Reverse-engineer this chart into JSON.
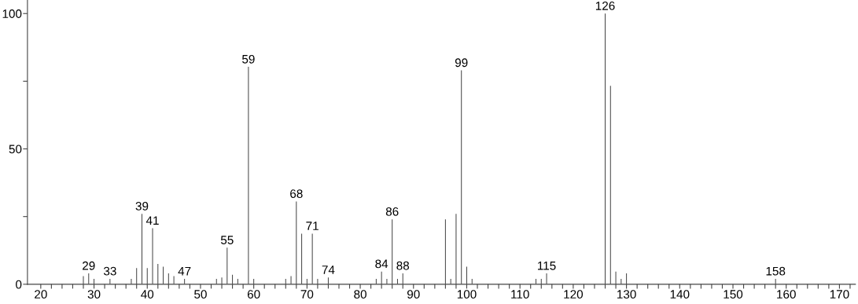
{
  "chart_data": {
    "type": "bar",
    "color": "#444444",
    "x": [
      28,
      29,
      30,
      33,
      37,
      38,
      39,
      40,
      41,
      42,
      43,
      44,
      45,
      47,
      53,
      54,
      55,
      56,
      57,
      59,
      60,
      66,
      67,
      68,
      69,
      70,
      71,
      72,
      74,
      83,
      84,
      85,
      86,
      87,
      88,
      96,
      97,
      98,
      99,
      100,
      101,
      113,
      114,
      115,
      126,
      127,
      128,
      129,
      130,
      158
    ],
    "values": [
      3,
      4,
      2,
      2,
      2,
      6,
      26,
      6,
      20.7,
      7.5,
      6.5,
      4,
      3,
      2,
      2,
      2.5,
      13.5,
      3.5,
      2,
      80.3,
      2,
      2,
      3,
      30.6,
      18.7,
      2,
      18.7,
      2,
      2.5,
      2,
      4.7,
      2,
      24,
      2,
      4,
      24,
      2,
      26,
      79,
      6.5,
      2,
      2,
      2,
      4,
      100,
      73.3,
      4.7,
      2,
      4,
      2
    ],
    "annotations": [
      {
        "text": "29",
        "x": 29,
        "y": 4
      },
      {
        "text": "33",
        "x": 33,
        "y": 2
      },
      {
        "text": "39",
        "x": 39,
        "y": 26
      },
      {
        "text": "41",
        "x": 41,
        "y": 20.7
      },
      {
        "text": "47",
        "x": 47,
        "y": 2
      },
      {
        "text": "55",
        "x": 55,
        "y": 13.5
      },
      {
        "text": "59",
        "x": 59,
        "y": 80.3
      },
      {
        "text": "68",
        "x": 68,
        "y": 30.6
      },
      {
        "text": "71",
        "x": 71,
        "y": 18.7
      },
      {
        "text": "74",
        "x": 74,
        "y": 2.5
      },
      {
        "text": "84",
        "x": 84,
        "y": 4.7
      },
      {
        "text": "86",
        "x": 86,
        "y": 24
      },
      {
        "text": "88",
        "x": 88,
        "y": 4
      },
      {
        "text": "99",
        "x": 99,
        "y": 79
      },
      {
        "text": "115",
        "x": 115,
        "y": 4
      },
      {
        "text": "126",
        "x": 126,
        "y": 100
      },
      {
        "text": "158",
        "x": 158,
        "y": 2
      }
    ],
    "xlim": [
      17.5,
      173
    ],
    "xticks": [
      20,
      {
        "value": 22,
        "label": null
      },
      {
        "value": 24,
        "label": null
      },
      {
        "value": 26,
        "label": null
      },
      {
        "value": 28,
        "label": null
      },
      30,
      {
        "value": 32,
        "label": null
      },
      {
        "value": 34,
        "label": null
      },
      {
        "value": 36,
        "label": null
      },
      {
        "value": 38,
        "label": null
      },
      40,
      {
        "value": 42,
        "label": null
      },
      {
        "value": 44,
        "label": null
      },
      {
        "value": 46,
        "label": null
      },
      {
        "value": 48,
        "label": null
      },
      50,
      {
        "value": 52,
        "label": null
      },
      {
        "value": 54,
        "label": null
      },
      {
        "value": 56,
        "label": null
      },
      {
        "value": 58,
        "label": null
      },
      60,
      {
        "value": 62,
        "label": null
      },
      {
        "value": 64,
        "label": null
      },
      {
        "value": 66,
        "label": null
      },
      {
        "value": 68,
        "label": null
      },
      70,
      {
        "value": 72,
        "label": null
      },
      {
        "value": 74,
        "label": null
      },
      {
        "value": 76,
        "label": null
      },
      {
        "value": 78,
        "label": null
      },
      80,
      {
        "value": 82,
        "label": null
      },
      {
        "value": 84,
        "label": null
      },
      {
        "value": 86,
        "label": null
      },
      {
        "value": 88,
        "label": null
      },
      90,
      {
        "value": 92,
        "label": null
      },
      {
        "value": 94,
        "label": null
      },
      {
        "value": 96,
        "label": null
      },
      {
        "value": 98,
        "label": null
      },
      100,
      {
        "value": 102,
        "label": null
      },
      {
        "value": 104,
        "label": null
      },
      {
        "value": 106,
        "label": null
      },
      {
        "value": 108,
        "label": null
      },
      110,
      {
        "value": 112,
        "label": null
      },
      {
        "value": 114,
        "label": null
      },
      {
        "value": 116,
        "label": null
      },
      {
        "value": 118,
        "label": null
      },
      120,
      {
        "value": 122,
        "label": null
      },
      {
        "value": 124,
        "label": null
      },
      {
        "value": 126,
        "label": null
      },
      {
        "value": 128,
        "label": null
      },
      130,
      {
        "value": 132,
        "label": null
      },
      {
        "value": 134,
        "label": null
      },
      {
        "value": 136,
        "label": null
      },
      {
        "value": 138,
        "label": null
      },
      140,
      {
        "value": 142,
        "label": null
      },
      {
        "value": 144,
        "label": null
      },
      {
        "value": 146,
        "label": null
      },
      {
        "value": 148,
        "label": null
      },
      150,
      {
        "value": 152,
        "label": null
      },
      {
        "value": 154,
        "label": null
      },
      {
        "value": 156,
        "label": null
      },
      {
        "value": 158,
        "label": null
      },
      160,
      {
        "value": 162,
        "label": null
      },
      {
        "value": 164,
        "label": null
      },
      {
        "value": 166,
        "label": null
      },
      {
        "value": 168,
        "label": null
      },
      170,
      {
        "value": 172,
        "label": null
      }
    ],
    "ylim": [
      0,
      105
    ],
    "yticks": [
      0,
      {
        "value": 25,
        "label": null
      },
      50,
      {
        "value": 75,
        "label": null
      },
      100
    ],
    "grid": false,
    "legend": false
  }
}
